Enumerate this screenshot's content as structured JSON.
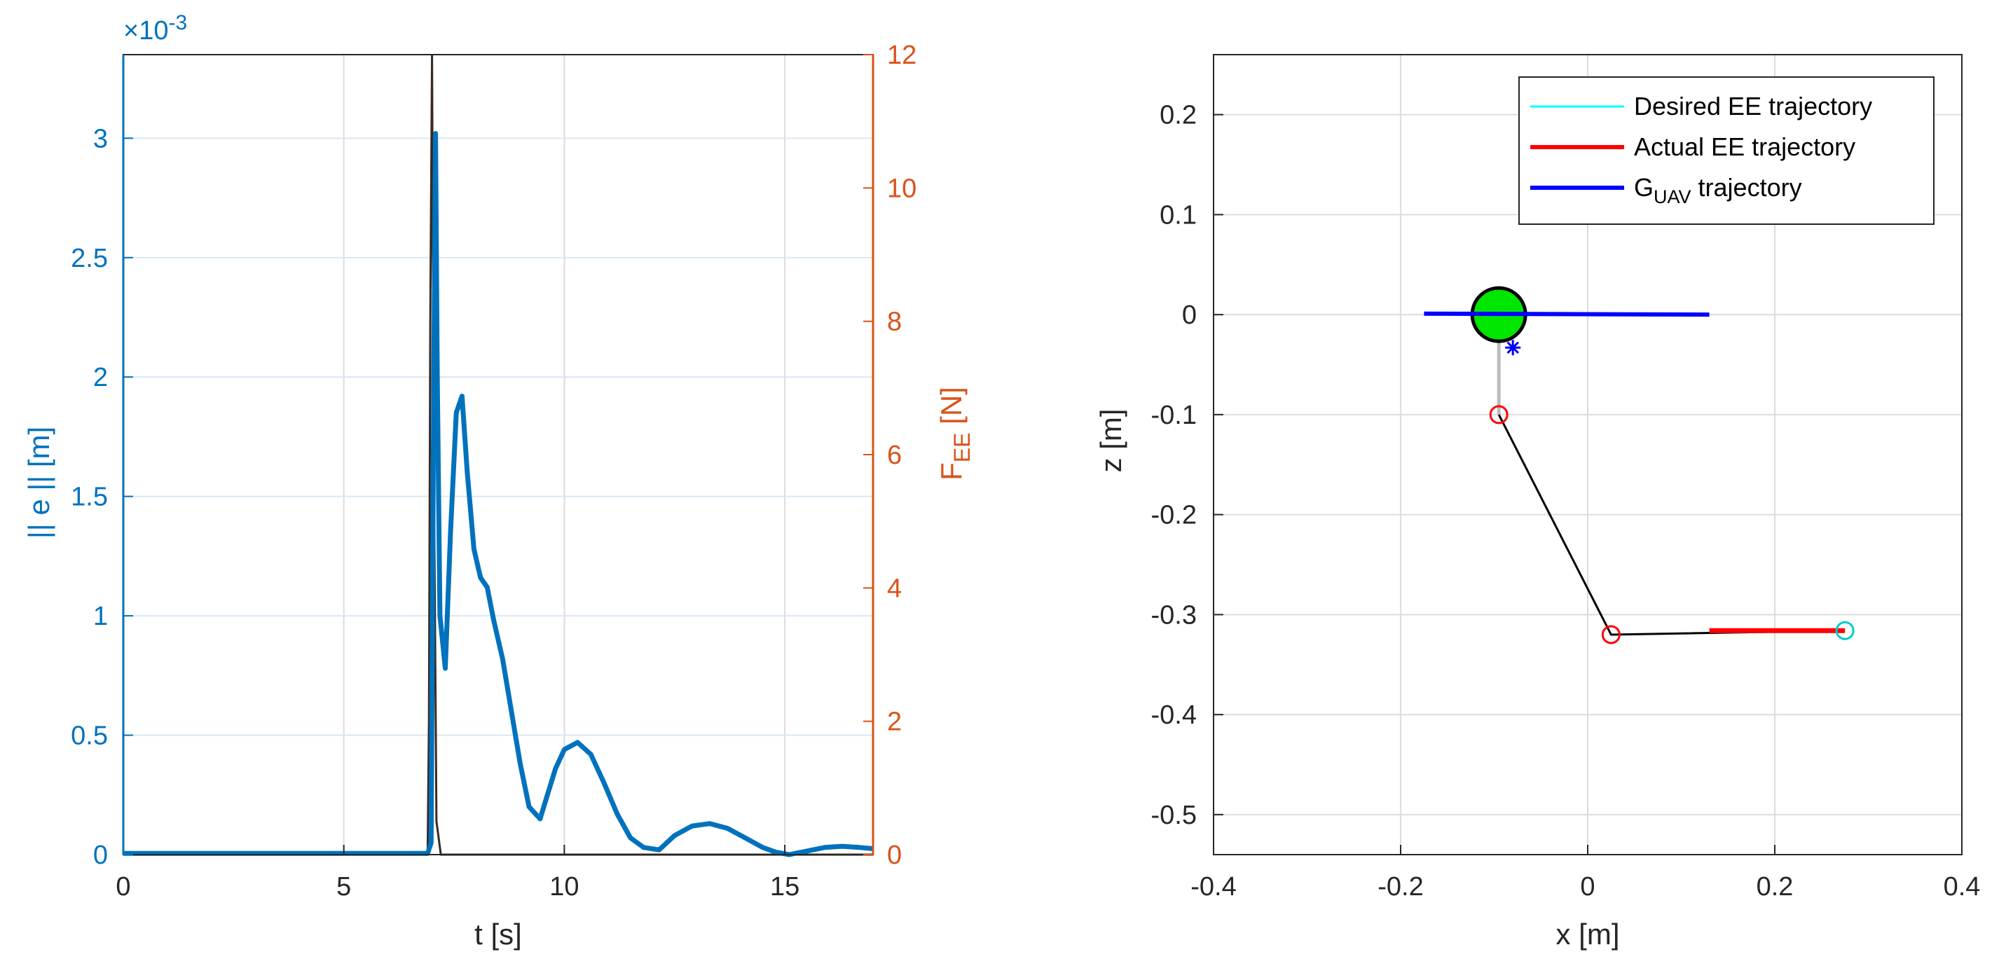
{
  "chart_data": [
    {
      "type": "line",
      "xlabel": "t [s]",
      "ylabel": "|| e || [m]",
      "ylabel2": "F_EE [N]",
      "exponent_label": "×10-3",
      "xlim": [
        0,
        17
      ],
      "ylim": [
        0,
        3.35
      ],
      "ylim2": [
        0,
        12
      ],
      "xticks": [
        0,
        5,
        10,
        15
      ],
      "yticks": [
        0,
        0.5,
        1,
        1.5,
        2,
        2.5,
        3
      ],
      "yticks2": [
        0,
        2,
        4,
        6,
        8,
        10,
        12
      ],
      "grid": true,
      "colors": {
        "left": "#0072BD",
        "right": "#D95319",
        "force_dark": "#3a2a22"
      },
      "series": [
        {
          "axis": "left",
          "x": [
            0,
            6.9,
            6.98,
            7.04,
            7.08,
            7.12,
            7.18,
            7.3,
            7.42,
            7.55,
            7.68,
            7.8,
            7.95,
            8.1,
            8.25,
            8.4,
            8.6,
            8.8,
            9.0,
            9.2,
            9.45,
            9.6,
            9.8,
            10.0,
            10.3,
            10.6,
            10.9,
            11.2,
            11.5,
            11.8,
            12.15,
            12.5,
            12.9,
            13.3,
            13.7,
            14.1,
            14.5,
            14.8,
            15.1,
            15.5,
            15.9,
            16.3,
            16.7,
            17.0
          ],
          "y": [
            0.005,
            0.005,
            0.05,
            2.0,
            3.02,
            2.0,
            1.0,
            0.78,
            1.35,
            1.85,
            1.92,
            1.6,
            1.28,
            1.16,
            1.12,
            0.98,
            0.82,
            0.6,
            0.38,
            0.2,
            0.15,
            0.24,
            0.36,
            0.44,
            0.47,
            0.42,
            0.3,
            0.17,
            0.07,
            0.03,
            0.02,
            0.08,
            0.12,
            0.13,
            0.11,
            0.07,
            0.03,
            0.01,
            0.0,
            0.015,
            0.03,
            0.035,
            0.03,
            0.025
          ]
        },
        {
          "axis": "right",
          "x": [
            0,
            6.9,
            6.93,
            6.96,
            7.0,
            7.04,
            7.1,
            7.2,
            17.0
          ],
          "y": [
            0,
            0,
            2,
            8,
            12,
            6,
            0.5,
            0,
            0
          ]
        }
      ]
    },
    {
      "type": "line",
      "xlabel": "x [m]",
      "ylabel": "z [m]",
      "xlim": [
        -0.4,
        0.4
      ],
      "ylim": [
        -0.54,
        0.26
      ],
      "xticks": [
        -0.4,
        -0.2,
        0,
        0.2,
        0.4
      ],
      "yticks": [
        0.2,
        0.1,
        0,
        -0.1,
        -0.2,
        -0.3,
        -0.4,
        -0.5
      ],
      "grid": true,
      "legend": "top-right",
      "series": [
        {
          "name": "Desired EE trajectory",
          "color": "#00FFFF",
          "x": [
            0.13,
            0.275
          ],
          "y": [
            -0.316,
            -0.316
          ]
        },
        {
          "name": "Actual EE trajectory",
          "color": "#FF0000",
          "x": [
            0.13,
            0.275
          ],
          "y": [
            -0.316,
            -0.316
          ]
        },
        {
          "name": "G",
          "name_sub": "UAV",
          "name_tail": " trajectory",
          "color": "#0000FF",
          "x": [
            -0.175,
            0.13
          ],
          "y": [
            0.001,
            0.0
          ]
        }
      ],
      "arm_links": {
        "color": "#000000",
        "x": [
          -0.095,
          0.025,
          0.275
        ],
        "y": [
          -0.1,
          -0.32,
          -0.316
        ]
      },
      "mast": {
        "color": "#BBBBBB",
        "x": [
          -0.095,
          -0.095
        ],
        "y": [
          0.0,
          -0.1
        ]
      },
      "joints": {
        "color": "#FF0000",
        "x": [
          -0.095,
          0.025
        ],
        "y": [
          -0.1,
          -0.32
        ]
      },
      "ee_marker": {
        "color": "#00CCCC",
        "x": 0.275,
        "y": -0.316
      },
      "body": {
        "color": "#00E600",
        "x": -0.095,
        "y": 0.0
      },
      "cog_marker": {
        "color": "#0000FF",
        "x": -0.08,
        "y": -0.033
      }
    }
  ]
}
